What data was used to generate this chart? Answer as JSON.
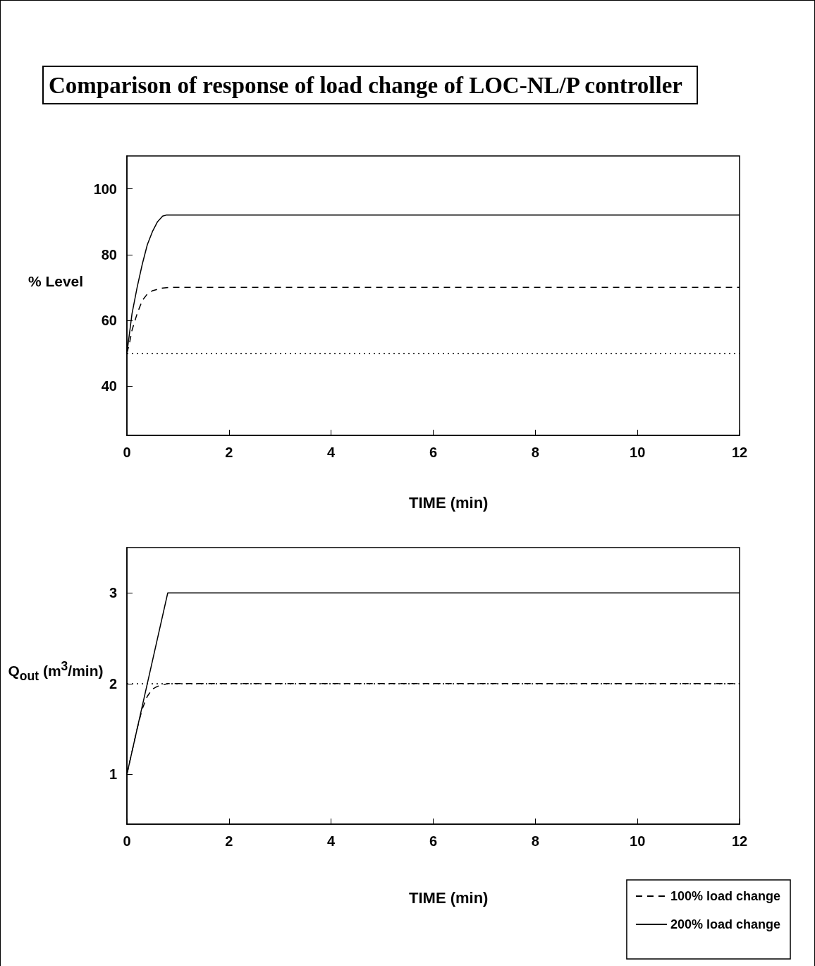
{
  "chart_data": [
    {
      "type": "line",
      "title": "Comparison of response of load change of LOC-NL/P controller",
      "xlabel": "TIME (min)",
      "ylabel": "% Level",
      "xlim": [
        0,
        12
      ],
      "xticks": [
        0,
        2,
        4,
        6,
        8,
        10,
        12
      ],
      "ylim": [
        25,
        110
      ],
      "yticks": [
        40,
        60,
        80,
        100
      ],
      "grid": false,
      "marker": "none",
      "series": [
        {
          "color": "#000000",
          "line_style": "dashed",
          "x": [
            0,
            0.05,
            0.1,
            0.2,
            0.3,
            0.4,
            0.5,
            0.7,
            0.85,
            12
          ],
          "values": [
            50,
            53,
            57,
            62,
            66,
            68,
            69,
            69.8,
            70,
            70
          ]
        },
        {
          "color": "#000000",
          "line_style": "solid",
          "x": [
            0,
            0.05,
            0.1,
            0.2,
            0.3,
            0.4,
            0.5,
            0.6,
            0.7,
            0.77,
            12
          ],
          "values": [
            50,
            56,
            62,
            70,
            77,
            83,
            87,
            90,
            91.7,
            92,
            92
          ]
        }
      ],
      "ref_lines": [
        {
          "axis": "y",
          "value": 50,
          "color": "#000000",
          "line_style": "dotted"
        }
      ]
    },
    {
      "type": "line",
      "xlabel": "TIME (min)",
      "ylabel": "Q$_{out}$ (m$^{3}$/min)",
      "xlim": [
        0,
        12
      ],
      "xticks": [
        0,
        2,
        4,
        6,
        8,
        10,
        12
      ],
      "ylim": [
        0.45,
        3.5
      ],
      "yticks": [
        1,
        2,
        3
      ],
      "grid": false,
      "marker": "none",
      "legend": "bottom right",
      "series": [
        {
          "name": "100% load change",
          "color": "#000000",
          "line_style": "dashed",
          "x": [
            0,
            0.1,
            0.2,
            0.3,
            0.4,
            0.5,
            0.6,
            0.8,
            12
          ],
          "values": [
            1,
            1.25,
            1.5,
            1.72,
            1.86,
            1.94,
            1.97,
            2,
            2
          ]
        },
        {
          "name": "200% load change",
          "color": "#000000",
          "line_style": "solid",
          "x": [
            0,
            0.8,
            12
          ],
          "values": [
            1,
            3,
            3
          ]
        }
      ],
      "ref_lines": [
        {
          "axis": "y",
          "value": 2,
          "color": "#000000",
          "line_style": "dotted"
        }
      ]
    }
  ]
}
